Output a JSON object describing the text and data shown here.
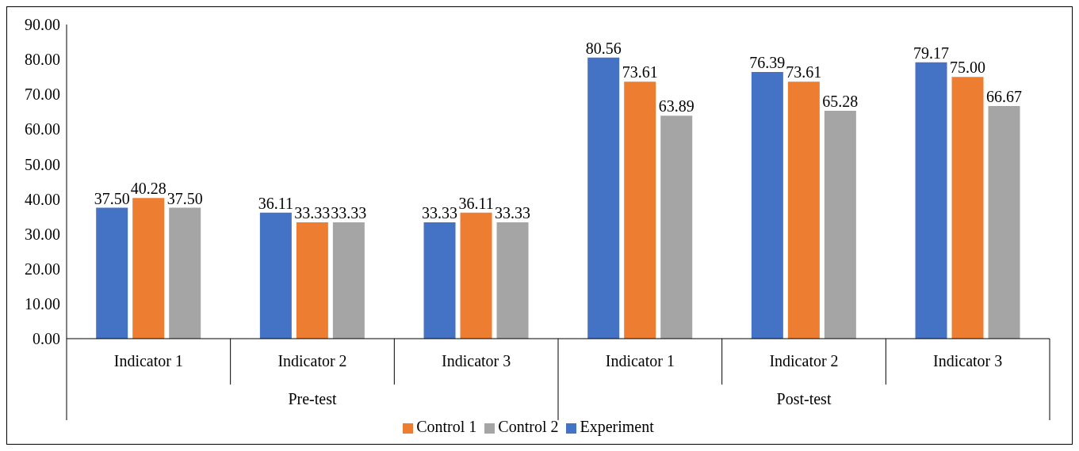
{
  "chart_data": {
    "type": "bar",
    "categories": [
      "Indicator 1",
      "Indicator 2",
      "Indicator 3",
      "Indicator 1",
      "Indicator 2",
      "Indicator 3"
    ],
    "annotations": [
      "Pre-test",
      "Post-test"
    ],
    "series": [
      {
        "name": "Experiment",
        "color": "#4472c4",
        "values": [
          37.5,
          36.11,
          33.33,
          80.56,
          76.39,
          79.17
        ],
        "value_labels": [
          "37.50",
          "36.11",
          "33.33",
          "80.56",
          "76.39",
          "79.17"
        ]
      },
      {
        "name": "Control 1",
        "color": "#ed7d31",
        "values": [
          40.28,
          33.33,
          36.11,
          73.61,
          73.61,
          75.0
        ],
        "value_labels": [
          "40.28",
          "33.33",
          "36.11",
          "73.61",
          "73.61",
          "75.00"
        ]
      },
      {
        "name": "Control 2",
        "color": "#a5a5a5",
        "values": [
          37.5,
          33.33,
          33.33,
          63.89,
          65.28,
          66.67
        ],
        "value_labels": [
          "37.50",
          "33.33",
          "33.33",
          "63.89",
          "65.28",
          "66.67"
        ]
      }
    ],
    "ylim": [
      0,
      90
    ],
    "yticks": [
      {
        "value": 0,
        "label": "0.00"
      },
      {
        "value": 10,
        "label": "10.00"
      },
      {
        "value": 20,
        "label": "20.00"
      },
      {
        "value": 30,
        "label": "30.00"
      },
      {
        "value": 40,
        "label": "40.00"
      },
      {
        "value": 50,
        "label": "50.00"
      },
      {
        "value": 60,
        "label": "60.00"
      },
      {
        "value": 70,
        "label": "70.00"
      },
      {
        "value": 80,
        "label": "80.00"
      },
      {
        "value": 90,
        "label": "90.00"
      }
    ],
    "legend": "bottom"
  }
}
